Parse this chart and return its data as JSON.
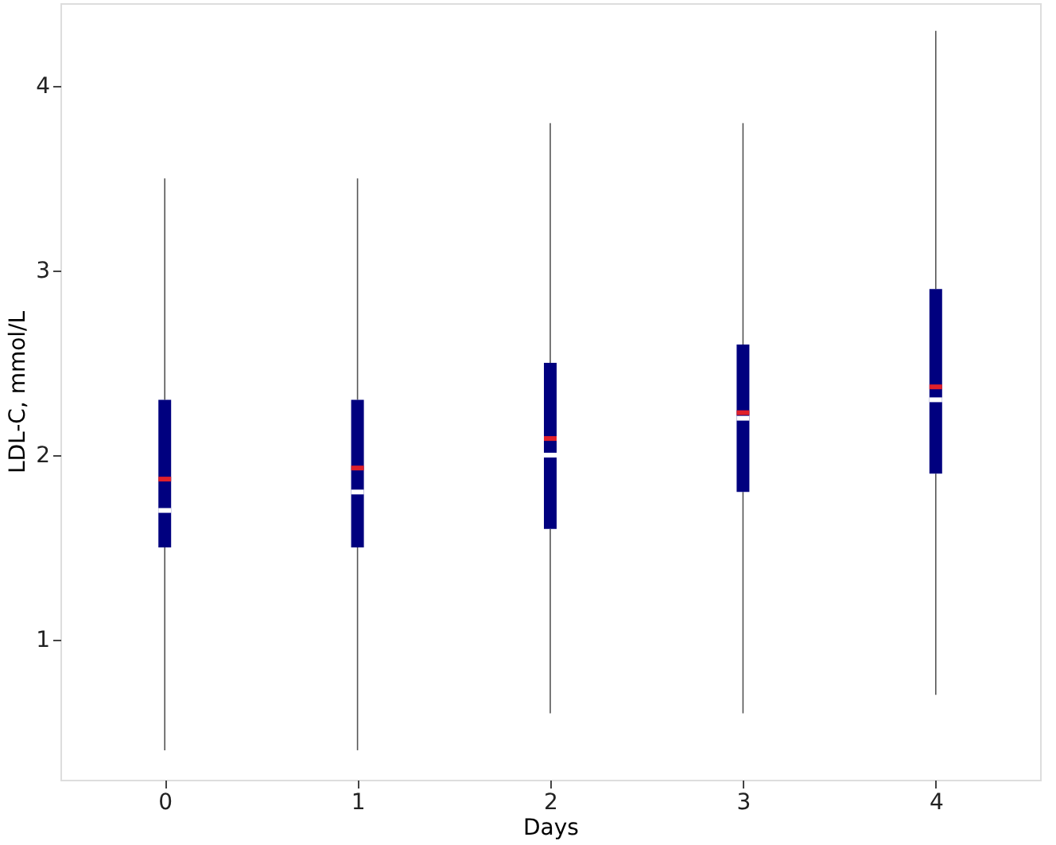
{
  "chart_data": {
    "type": "box",
    "xlabel": "Days",
    "ylabel": "LDL-C, mmol/L",
    "categories": [
      "0",
      "1",
      "2",
      "3",
      "4"
    ],
    "series": [
      {
        "color": "#00007f",
        "boxes": [
          {
            "low": 0.4,
            "q1": 1.5,
            "median": 1.7,
            "q3": 2.3,
            "high": 3.5,
            "mean": 1.87
          },
          {
            "low": 0.4,
            "q1": 1.5,
            "median": 1.8,
            "q3": 2.3,
            "high": 3.5,
            "mean": 1.93
          },
          {
            "low": 0.6,
            "q1": 1.6,
            "median": 2.0,
            "q3": 2.5,
            "high": 3.8,
            "mean": 2.09
          },
          {
            "low": 0.6,
            "q1": 1.8,
            "median": 2.2,
            "q3": 2.6,
            "high": 3.8,
            "mean": 2.23
          },
          {
            "low": 0.7,
            "q1": 1.9,
            "median": 2.3,
            "q3": 2.9,
            "high": 4.3,
            "mean": 2.37
          }
        ]
      }
    ],
    "ylim": [
      0.24,
      4.45
    ],
    "yticks": [
      1,
      2,
      3,
      4
    ],
    "grid": false
  }
}
